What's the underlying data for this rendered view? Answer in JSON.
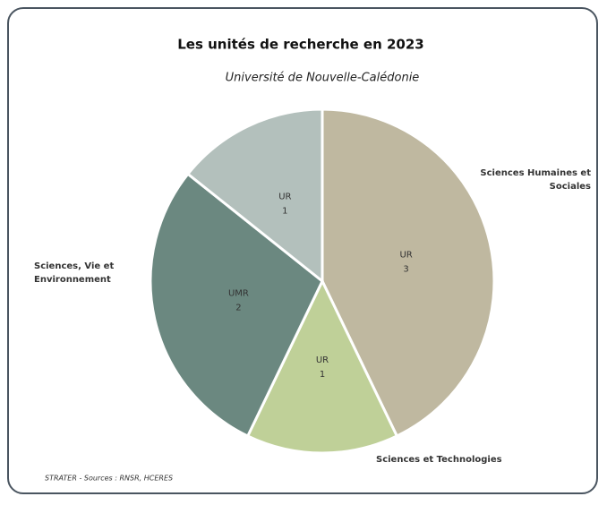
{
  "chart_data": {
    "type": "pie",
    "title": "Les unités de recherche en 2023",
    "subtitle": "Université de Nouvelle-Calédonie",
    "categories": [
      "UR",
      "UR",
      "UMR",
      "UR"
    ],
    "values": [
      3,
      1,
      2,
      1
    ],
    "colors": [
      "#bfb8a0",
      "#bfd098",
      "#6b8880",
      "#b3c0bc"
    ],
    "group_labels": [
      "Sciences Humaines et Sociales",
      "Sciences et Technologies",
      "Sciences, Vie et Environnement",
      null
    ],
    "source": "STRATER - Sources : RNSR, HCERES"
  }
}
